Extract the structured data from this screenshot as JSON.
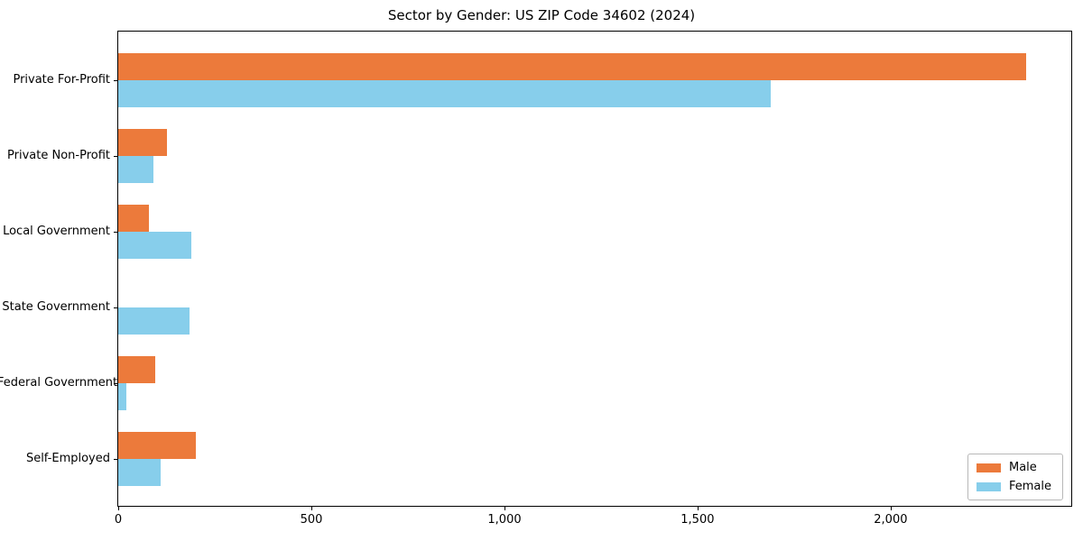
{
  "chart_data": {
    "type": "bar",
    "orientation": "horizontal",
    "title": "Sector by Gender: US ZIP Code 34602 (2024)",
    "categories": [
      "Private For-Profit",
      "Private Non-Profit",
      "Local Government",
      "State Government",
      "Federal Government",
      "Self-Employed"
    ],
    "series": [
      {
        "name": "Male",
        "color": "#EC7A3B",
        "values": [
          2350,
          125,
          80,
          0,
          95,
          200
        ]
      },
      {
        "name": "Female",
        "color": "#87CEEB",
        "values": [
          1690,
          90,
          190,
          185,
          20,
          110
        ]
      }
    ],
    "xlabel": "",
    "ylabel": "",
    "xlim": [
      0,
      2467.5
    ],
    "x_ticks": [
      0,
      500,
      1000,
      1500,
      2000
    ],
    "x_tick_labels": [
      "0",
      "500",
      "1,000",
      "1,500",
      "2,000"
    ],
    "grid": false,
    "legend_position": "lower right"
  },
  "legend": {
    "male_label": "Male",
    "female_label": "Female"
  }
}
